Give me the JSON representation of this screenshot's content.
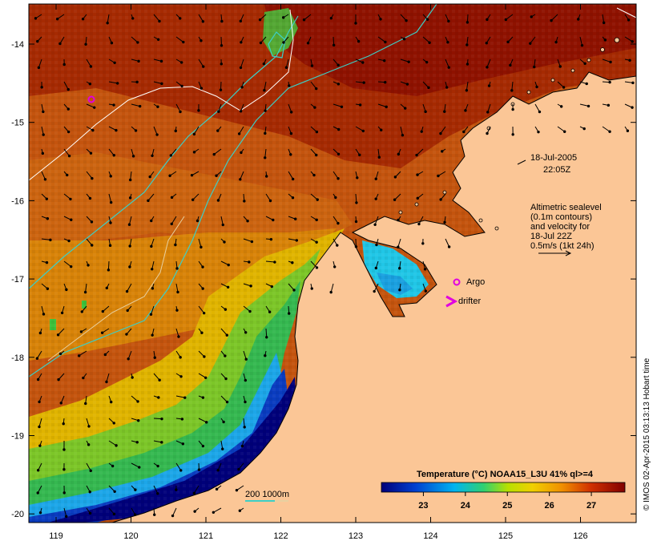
{
  "map": {
    "date_line1": "18-Jul-2005",
    "date_line2": "22:05Z",
    "legend": {
      "line1": "Altimetric sealevel",
      "line2": "(0.1m contours)",
      "line3": "and velocity for",
      "line4": "18-Jul 22Z",
      "line5": "0.5m/s (1kt 24h)"
    },
    "argo_label": "Argo",
    "drifter_label": "drifter",
    "depth_legend": "200  1000m",
    "colorbar": {
      "title": "Temperature (°C) NOAA15_L3U 41% ql>=4",
      "ticks": [
        "23",
        "24",
        "25",
        "26",
        "27"
      ],
      "range": [
        22,
        27.8
      ]
    },
    "credit": "© IMOS 02-Apr-2015 03:13:13 Hobart time",
    "x_ticks": [
      "119",
      "120",
      "121",
      "122",
      "123",
      "124",
      "125",
      "126"
    ],
    "y_ticks": [
      "-14",
      "-15",
      "-16",
      "-17",
      "-18",
      "-19",
      "-20"
    ],
    "colors": {
      "land": "#fbc696",
      "sst_warm": "#9a1600",
      "sst_orange": "#cf5a0a",
      "sst_yellow": "#e2a000",
      "sst_green": "#3cc33c",
      "sst_cyan": "#00c8e6",
      "sst_blue": "#0050c8",
      "sst_navy": "#00007a",
      "contour_cyan": "#3ccfc6",
      "argo_magenta": "#e000e0"
    }
  }
}
